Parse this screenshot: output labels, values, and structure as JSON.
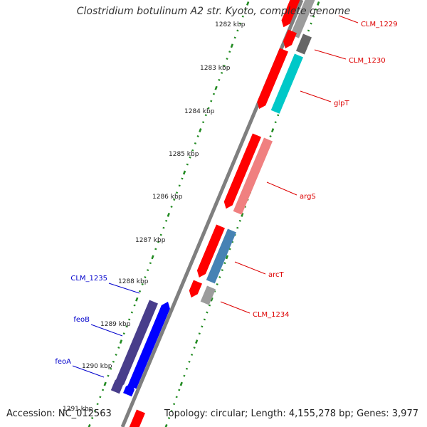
{
  "title": "Clostridium botulinum A2 str. Kyoto, complete genome",
  "footer": {
    "accession": "Accession: NC_012563",
    "topology": "Topology: circular; Length: 4,155,278 bp; Genes: 3,977"
  },
  "colors": {
    "backbone": "#7f7f7f",
    "tick": "#228b22",
    "forward_label": "#dd0000",
    "reverse_label": "#0000cc",
    "cds_red": "#ff0000",
    "gray_feature": "#9c9c9c",
    "dark_gray_feature": "#666666",
    "cyan_feature": "#00c8c8",
    "salmon_feature": "#f08080",
    "steel_blue_feature": "#4682b4",
    "indigo_feature": "#483d8b",
    "blue_feature": "#0000ff"
  },
  "scale_labels": [
    "1282 kbp",
    "1283 kbp",
    "1284 kbp",
    "1285 kbp",
    "1286 kbp",
    "1287 kbp",
    "1288 kbp",
    "1289 kbp",
    "1290 kbp",
    "1291 kbp"
  ],
  "gene_labels": [
    {
      "text": "CLM_1229",
      "strand": "forward"
    },
    {
      "text": "CLM_1230",
      "strand": "forward"
    },
    {
      "text": "glpT",
      "strand": "forward"
    },
    {
      "text": "argS",
      "strand": "forward"
    },
    {
      "text": "arcT",
      "strand": "forward"
    },
    {
      "text": "CLM_1234",
      "strand": "forward"
    },
    {
      "text": "CLM_1235",
      "strand": "reverse"
    },
    {
      "text": "feoB",
      "strand": "reverse"
    },
    {
      "text": "feoA",
      "strand": "reverse"
    }
  ]
}
